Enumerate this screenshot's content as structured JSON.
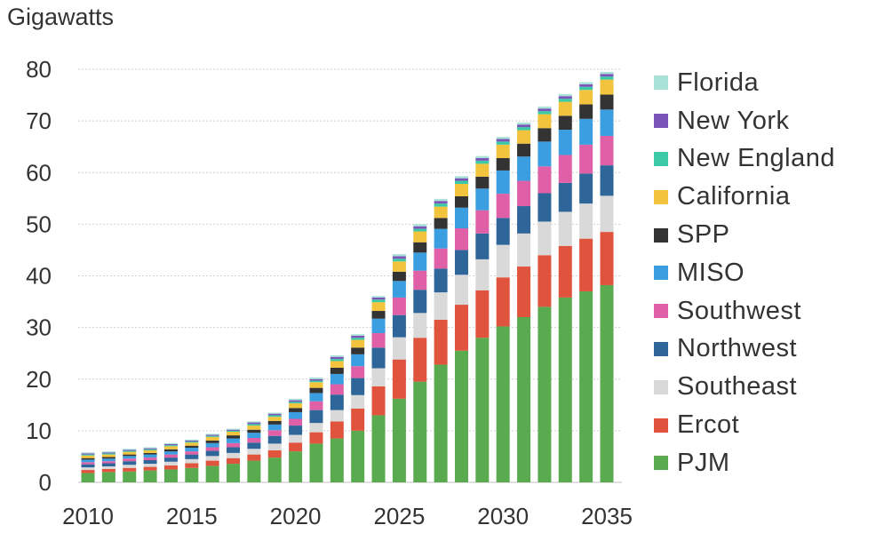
{
  "chart_data": {
    "type": "bar",
    "stacked": true,
    "ylabel": "Gigawatts",
    "ylim": [
      0,
      80
    ],
    "yticks": [
      0,
      10,
      20,
      30,
      40,
      50,
      60,
      70,
      80
    ],
    "xticks": [
      2010,
      2015,
      2020,
      2025,
      2030,
      2035
    ],
    "grid": "horizontal dotted",
    "legend_position": "right",
    "categories": [
      2010,
      2011,
      2012,
      2013,
      2014,
      2015,
      2016,
      2017,
      2018,
      2019,
      2020,
      2021,
      2022,
      2023,
      2024,
      2025,
      2026,
      2027,
      2028,
      2029,
      2030,
      2031,
      2032,
      2033,
      2034,
      2035
    ],
    "series": [
      {
        "name": "PJM",
        "color": "#5aaa50",
        "values": [
          1.8,
          2.0,
          2.1,
          2.3,
          2.5,
          2.8,
          3.2,
          3.6,
          4.2,
          4.8,
          6.0,
          7.5,
          8.5,
          10.0,
          13.0,
          16.2,
          19.5,
          22.8,
          25.5,
          28.0,
          30.2,
          32.0,
          34.0,
          35.8,
          37.0,
          38.2
        ]
      },
      {
        "name": "Ercot",
        "color": "#e0533d",
        "values": [
          0.6,
          0.6,
          0.7,
          0.7,
          0.8,
          0.9,
          1.0,
          1.1,
          1.2,
          1.4,
          1.7,
          2.2,
          3.3,
          4.3,
          5.6,
          7.6,
          8.5,
          8.7,
          8.9,
          9.2,
          9.5,
          9.8,
          10.0,
          10.0,
          10.2,
          10.3
        ]
      },
      {
        "name": "Southeast",
        "color": "#d9d9d9",
        "values": [
          0.5,
          0.5,
          0.6,
          0.6,
          0.7,
          0.8,
          0.9,
          1.0,
          1.1,
          1.3,
          1.5,
          1.8,
          2.2,
          2.6,
          3.5,
          4.3,
          4.8,
          5.3,
          5.8,
          6.0,
          6.3,
          6.4,
          6.5,
          6.6,
          6.8,
          7.0
        ]
      },
      {
        "name": "Northwest",
        "color": "#2e6699",
        "values": [
          0.6,
          0.6,
          0.7,
          0.7,
          0.8,
          0.9,
          1.0,
          1.1,
          1.2,
          1.5,
          1.8,
          2.5,
          3.0,
          3.3,
          4.0,
          4.3,
          4.5,
          4.6,
          4.8,
          5.0,
          5.2,
          5.3,
          5.5,
          5.6,
          5.8,
          5.9
        ]
      },
      {
        "name": "Southwest",
        "color": "#e060a8",
        "values": [
          0.4,
          0.4,
          0.5,
          0.5,
          0.6,
          0.6,
          0.7,
          0.8,
          0.9,
          1.1,
          1.3,
          1.7,
          2.0,
          2.3,
          2.8,
          3.4,
          3.7,
          3.9,
          4.2,
          4.5,
          4.7,
          4.9,
          5.2,
          5.4,
          5.6,
          5.7
        ]
      },
      {
        "name": "MISO",
        "color": "#3b9ee0",
        "values": [
          0.5,
          0.5,
          0.5,
          0.6,
          0.6,
          0.7,
          0.8,
          0.9,
          1.0,
          1.1,
          1.3,
          1.6,
          2.0,
          2.3,
          2.8,
          3.2,
          3.5,
          3.8,
          4.0,
          4.2,
          4.5,
          4.7,
          4.8,
          4.9,
          5.0,
          5.1
        ]
      },
      {
        "name": "SPP",
        "color": "#333333",
        "values": [
          0.3,
          0.3,
          0.3,
          0.3,
          0.4,
          0.4,
          0.5,
          0.6,
          0.6,
          0.7,
          0.8,
          1.0,
          1.2,
          1.3,
          1.5,
          1.8,
          2.0,
          2.1,
          2.2,
          2.3,
          2.4,
          2.5,
          2.6,
          2.7,
          2.8,
          2.9
        ]
      },
      {
        "name": "California",
        "color": "#f2c33c",
        "values": [
          0.5,
          0.5,
          0.5,
          0.5,
          0.6,
          0.6,
          0.7,
          0.7,
          0.8,
          0.8,
          0.9,
          1.1,
          1.3,
          1.5,
          1.7,
          2.0,
          2.1,
          2.2,
          2.4,
          2.5,
          2.6,
          2.6,
          2.7,
          2.7,
          2.8,
          2.9
        ]
      },
      {
        "name": "New England",
        "color": "#3cc9a5",
        "values": [
          0.2,
          0.2,
          0.2,
          0.2,
          0.2,
          0.2,
          0.2,
          0.2,
          0.3,
          0.3,
          0.3,
          0.3,
          0.4,
          0.4,
          0.5,
          0.5,
          0.5,
          0.6,
          0.6,
          0.6,
          0.6,
          0.6,
          0.6,
          0.6,
          0.6,
          0.6
        ]
      },
      {
        "name": "New York",
        "color": "#7b55b8",
        "values": [
          0.2,
          0.2,
          0.2,
          0.2,
          0.2,
          0.2,
          0.2,
          0.2,
          0.3,
          0.3,
          0.3,
          0.3,
          0.4,
          0.4,
          0.4,
          0.5,
          0.5,
          0.5,
          0.5,
          0.5,
          0.5,
          0.5,
          0.5,
          0.5,
          0.5,
          0.5
        ]
      },
      {
        "name": "Florida",
        "color": "#a8e2d8",
        "values": [
          0.2,
          0.2,
          0.2,
          0.2,
          0.2,
          0.2,
          0.2,
          0.2,
          0.2,
          0.2,
          0.3,
          0.3,
          0.3,
          0.3,
          0.3,
          0.4,
          0.4,
          0.4,
          0.4,
          0.4,
          0.4,
          0.4,
          0.4,
          0.4,
          0.4,
          0.4
        ]
      }
    ]
  }
}
